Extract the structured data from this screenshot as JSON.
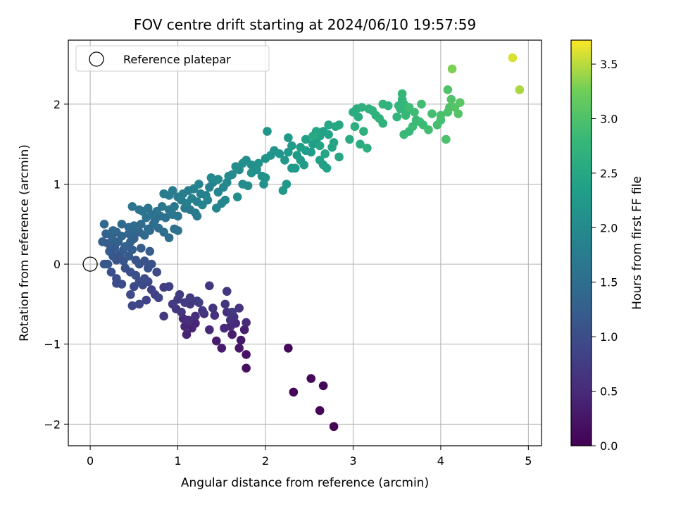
{
  "chart_data": {
    "type": "scatter",
    "title": "FOV centre drift starting at 2024/06/10 19:57:59",
    "xlabel": "Angular distance from reference (arcmin)",
    "ylabel": "Rotation from reference (arcmin)",
    "xlim": [
      -0.25,
      5.15
    ],
    "ylim": [
      -2.27,
      2.8
    ],
    "xticks": [
      0,
      1,
      2,
      3,
      4,
      5
    ],
    "yticks": [
      -2,
      -1,
      0,
      1,
      2
    ],
    "grid": true,
    "legend": {
      "position": "top-left",
      "entries": [
        "Reference platepar"
      ]
    },
    "reference_point": {
      "x": 0,
      "y": 0
    },
    "colorbar": {
      "label": "Hours from first FF file",
      "range": [
        0,
        3.72
      ],
      "ticks": [
        0.0,
        0.5,
        1.0,
        1.5,
        2.0,
        2.5,
        3.0,
        3.5
      ],
      "colormap": "viridis"
    },
    "points": [
      [
        2.78,
        -2.03,
        0.02
      ],
      [
        2.62,
        -1.83,
        0.04
      ],
      [
        2.32,
        -1.6,
        0.06
      ],
      [
        2.66,
        -1.52,
        0.05
      ],
      [
        2.52,
        -1.43,
        0.08
      ],
      [
        2.26,
        -1.05,
        0.1
      ],
      [
        1.78,
        -1.3,
        0.18
      ],
      [
        1.78,
        -1.13,
        0.22
      ],
      [
        1.7,
        -1.05,
        0.25
      ],
      [
        1.5,
        -1.05,
        0.3
      ],
      [
        1.44,
        -0.96,
        0.32
      ],
      [
        1.72,
        -0.95,
        0.28
      ],
      [
        1.62,
        -0.88,
        0.34
      ],
      [
        1.76,
        -0.82,
        0.36
      ],
      [
        1.1,
        -0.88,
        0.4
      ],
      [
        1.16,
        -0.8,
        0.42
      ],
      [
        1.08,
        -0.78,
        0.45
      ],
      [
        1.2,
        -0.74,
        0.44
      ],
      [
        1.36,
        -0.82,
        0.46
      ],
      [
        1.53,
        -0.8,
        0.48
      ],
      [
        1.6,
        -0.78,
        0.5
      ],
      [
        1.66,
        -0.74,
        0.49
      ],
      [
        1.78,
        -0.73,
        0.52
      ],
      [
        1.06,
        -0.68,
        0.54
      ],
      [
        1.12,
        -0.7,
        0.55
      ],
      [
        1.2,
        -0.65,
        0.56
      ],
      [
        1.3,
        -0.62,
        0.58
      ],
      [
        1.42,
        -0.64,
        0.6
      ],
      [
        1.56,
        -0.6,
        0.57
      ],
      [
        1.64,
        -0.66,
        0.59
      ],
      [
        1.7,
        -0.55,
        0.62
      ],
      [
        1.6,
        -0.7,
        0.61
      ],
      [
        0.98,
        -0.56,
        0.64
      ],
      [
        1.04,
        -0.6,
        0.65
      ],
      [
        1.14,
        -0.5,
        0.66
      ],
      [
        1.28,
        -0.58,
        0.67
      ],
      [
        1.4,
        -0.55,
        0.63
      ],
      [
        1.54,
        -0.5,
        0.68
      ],
      [
        1.62,
        -0.6,
        0.69
      ],
      [
        0.84,
        -0.65,
        0.7
      ],
      [
        0.94,
        -0.5,
        0.72
      ],
      [
        1.0,
        -0.44,
        0.71
      ],
      [
        1.08,
        -0.48,
        0.73
      ],
      [
        1.22,
        -0.46,
        0.74
      ],
      [
        1.02,
        -0.38,
        0.75
      ],
      [
        1.14,
        -0.42,
        0.76
      ],
      [
        1.24,
        -0.48,
        0.77
      ],
      [
        1.36,
        -0.27,
        0.66
      ],
      [
        1.56,
        -0.34,
        0.68
      ],
      [
        0.84,
        -0.29,
        0.78
      ],
      [
        0.9,
        -0.28,
        0.8
      ],
      [
        0.74,
        -0.38,
        0.82
      ],
      [
        0.7,
        -0.32,
        0.83
      ],
      [
        0.78,
        -0.42,
        0.84
      ],
      [
        0.64,
        -0.45,
        0.86
      ],
      [
        0.56,
        -0.5,
        0.88
      ],
      [
        0.48,
        -0.52,
        0.9
      ],
      [
        0.6,
        -0.26,
        0.92
      ],
      [
        0.66,
        -0.22,
        0.93
      ],
      [
        0.5,
        -0.28,
        0.95
      ],
      [
        0.46,
        -0.38,
        0.94
      ],
      [
        0.36,
        -0.25,
        0.98
      ],
      [
        0.3,
        -0.24,
        1.0
      ],
      [
        0.24,
        -0.1,
        1.02
      ],
      [
        0.3,
        -0.18,
        1.01
      ],
      [
        0.76,
        -0.1,
        0.96
      ],
      [
        0.56,
        -0.22,
        0.97
      ],
      [
        0.62,
        -0.18,
        0.99
      ],
      [
        0.46,
        -0.1,
        1.04
      ],
      [
        0.52,
        -0.14,
        1.03
      ],
      [
        0.4,
        -0.05,
        1.05
      ],
      [
        0.56,
        0.0,
        1.08
      ],
      [
        0.62,
        0.04,
        1.1
      ],
      [
        0.7,
        0.0,
        1.06
      ],
      [
        0.66,
        -0.05,
        1.07
      ],
      [
        0.52,
        0.05,
        1.09
      ],
      [
        0.38,
        0.04,
        1.12
      ],
      [
        0.3,
        0.05,
        1.11
      ],
      [
        0.2,
        0.0,
        1.14
      ],
      [
        0.16,
        0.0,
        1.15
      ],
      [
        0.26,
        0.1,
        1.13
      ],
      [
        0.34,
        0.12,
        1.16
      ],
      [
        0.44,
        0.1,
        1.18
      ],
      [
        0.22,
        0.16,
        1.2
      ],
      [
        0.28,
        0.2,
        1.19
      ],
      [
        0.38,
        0.18,
        1.22
      ],
      [
        0.48,
        0.18,
        1.24
      ],
      [
        0.58,
        0.2,
        1.21
      ],
      [
        0.68,
        0.16,
        1.23
      ],
      [
        0.14,
        0.28,
        1.26
      ],
      [
        0.2,
        0.26,
        1.25
      ],
      [
        0.26,
        0.3,
        1.27
      ],
      [
        0.32,
        0.28,
        1.28
      ],
      [
        0.4,
        0.22,
        1.29
      ],
      [
        0.46,
        0.28,
        1.3
      ],
      [
        0.5,
        0.32,
        1.32
      ],
      [
        0.18,
        0.38,
        1.31
      ],
      [
        0.24,
        0.36,
        1.33
      ],
      [
        0.3,
        0.4,
        1.34
      ],
      [
        0.36,
        0.35,
        1.35
      ],
      [
        0.44,
        0.38,
        1.36
      ],
      [
        0.5,
        0.42,
        1.38
      ],
      [
        0.56,
        0.4,
        1.37
      ],
      [
        0.62,
        0.36,
        1.39
      ],
      [
        0.68,
        0.42,
        1.4
      ],
      [
        0.16,
        0.5,
        1.42
      ],
      [
        0.26,
        0.42,
        1.41
      ],
      [
        0.36,
        0.5,
        1.44
      ],
      [
        0.44,
        0.46,
        1.43
      ],
      [
        0.5,
        0.48,
        1.46
      ],
      [
        0.58,
        0.5,
        1.45
      ],
      [
        0.66,
        0.44,
        1.47
      ],
      [
        0.72,
        0.5,
        1.48
      ],
      [
        0.78,
        0.45,
        1.5
      ],
      [
        0.84,
        0.4,
        1.52
      ],
      [
        0.9,
        0.33,
        1.49
      ],
      [
        0.96,
        0.44,
        1.53
      ],
      [
        1.0,
        0.42,
        1.55
      ],
      [
        0.74,
        0.55,
        1.51
      ],
      [
        0.8,
        0.6,
        1.54
      ],
      [
        0.86,
        0.58,
        1.56
      ],
      [
        0.64,
        0.58,
        1.57
      ],
      [
        0.7,
        0.62,
        1.58
      ],
      [
        0.6,
        0.66,
        1.6
      ],
      [
        0.66,
        0.7,
        1.59
      ],
      [
        0.48,
        0.72,
        1.62
      ],
      [
        0.56,
        0.68,
        1.61
      ],
      [
        0.94,
        0.62,
        1.63
      ],
      [
        1.0,
        0.6,
        1.65
      ],
      [
        0.76,
        0.66,
        1.64
      ],
      [
        0.82,
        0.72,
        1.66
      ],
      [
        0.9,
        0.68,
        1.67
      ],
      [
        0.96,
        0.72,
        1.68
      ],
      [
        1.08,
        0.7,
        1.7
      ],
      [
        1.14,
        0.68,
        1.69
      ],
      [
        1.2,
        0.64,
        1.71
      ],
      [
        1.22,
        0.6,
        1.72
      ],
      [
        0.84,
        0.88,
        1.74
      ],
      [
        0.9,
        0.86,
        1.73
      ],
      [
        0.94,
        0.92,
        1.76
      ],
      [
        1.0,
        0.84,
        1.75
      ],
      [
        1.06,
        0.88,
        1.78
      ],
      [
        1.12,
        0.92,
        1.77
      ],
      [
        1.04,
        0.8,
        1.79
      ],
      [
        1.1,
        0.76,
        1.8
      ],
      [
        1.16,
        0.82,
        1.82
      ],
      [
        1.22,
        0.78,
        1.81
      ],
      [
        1.26,
        0.88,
        1.84
      ],
      [
        1.32,
        0.86,
        1.83
      ],
      [
        1.18,
        0.94,
        1.85
      ],
      [
        1.24,
        1.0,
        1.86
      ],
      [
        1.36,
        0.96,
        1.87
      ],
      [
        1.4,
        1.02,
        1.88
      ],
      [
        1.28,
        0.74,
        1.89
      ],
      [
        1.34,
        0.8,
        1.9
      ],
      [
        1.44,
        0.7,
        1.91
      ],
      [
        1.5,
        0.76,
        1.92
      ],
      [
        1.54,
        0.8,
        1.93
      ],
      [
        1.46,
        0.9,
        1.94
      ],
      [
        1.52,
        0.96,
        1.95
      ],
      [
        1.56,
        1.02,
        1.96
      ],
      [
        1.38,
        1.08,
        1.97
      ],
      [
        1.46,
        1.06,
        1.98
      ],
      [
        1.58,
        1.1,
        1.99
      ],
      [
        1.62,
        1.12,
        2.0
      ],
      [
        1.7,
        1.18,
        2.01
      ],
      [
        1.68,
        0.84,
        2.02
      ],
      [
        1.74,
        1.0,
        2.03
      ],
      [
        1.8,
        0.98,
        2.04
      ],
      [
        1.66,
        1.22,
        2.05
      ],
      [
        1.74,
        1.26,
        2.06
      ],
      [
        1.78,
        1.3,
        2.07
      ],
      [
        1.84,
        1.24,
        2.08
      ],
      [
        1.9,
        1.18,
        2.09
      ],
      [
        1.96,
        1.1,
        2.1
      ],
      [
        1.98,
        1.0,
        2.11
      ],
      [
        2.0,
        1.08,
        2.12
      ],
      [
        1.84,
        1.14,
        2.13
      ],
      [
        1.92,
        1.26,
        2.14
      ],
      [
        2.0,
        1.32,
        2.15
      ],
      [
        2.06,
        1.36,
        2.16
      ],
      [
        2.1,
        1.42,
        2.17
      ],
      [
        2.16,
        1.38,
        2.18
      ],
      [
        2.02,
        1.66,
        2.2
      ],
      [
        2.22,
        1.3,
        2.19
      ],
      [
        2.2,
        0.92,
        2.22
      ],
      [
        2.24,
        1.0,
        2.21
      ],
      [
        2.3,
        1.2,
        2.24
      ],
      [
        2.26,
        1.4,
        2.23
      ],
      [
        2.3,
        1.48,
        2.26
      ],
      [
        2.26,
        1.58,
        2.25
      ],
      [
        2.36,
        1.36,
        2.28
      ],
      [
        2.4,
        1.3,
        2.27
      ],
      [
        2.34,
        1.2,
        2.3
      ],
      [
        2.44,
        1.24,
        2.29
      ],
      [
        2.46,
        1.42,
        2.32
      ],
      [
        2.52,
        1.4,
        2.31
      ],
      [
        2.54,
        1.5,
        2.34
      ],
      [
        2.58,
        1.56,
        2.33
      ],
      [
        2.46,
        1.56,
        2.36
      ],
      [
        2.4,
        1.46,
        2.35
      ],
      [
        2.62,
        1.3,
        2.38
      ],
      [
        2.66,
        1.24,
        2.37
      ],
      [
        2.62,
        1.6,
        2.4
      ],
      [
        2.66,
        1.66,
        2.39
      ],
      [
        2.72,
        1.62,
        2.42
      ],
      [
        2.7,
        1.2,
        2.41
      ],
      [
        2.76,
        1.46,
        2.44
      ],
      [
        2.78,
        1.52,
        2.43
      ],
      [
        2.62,
        1.48,
        2.46
      ],
      [
        2.68,
        1.38,
        2.45
      ],
      [
        2.58,
        1.66,
        2.48
      ],
      [
        2.84,
        1.34,
        2.47
      ],
      [
        2.72,
        1.74,
        2.5
      ],
      [
        2.8,
        1.72,
        2.49
      ],
      [
        2.84,
        1.74,
        2.52
      ],
      [
        2.54,
        1.6,
        2.51
      ],
      [
        2.96,
        1.56,
        2.55
      ],
      [
        3.0,
        1.9,
        2.58
      ],
      [
        3.04,
        1.94,
        2.6
      ],
      [
        3.06,
        1.84,
        2.57
      ],
      [
        3.02,
        1.72,
        2.62
      ],
      [
        3.08,
        1.5,
        2.61
      ],
      [
        3.12,
        1.66,
        2.64
      ],
      [
        3.16,
        1.45,
        2.63
      ],
      [
        3.1,
        1.96,
        2.66
      ],
      [
        3.18,
        1.94,
        2.65
      ],
      [
        3.22,
        1.92,
        2.68
      ],
      [
        3.26,
        1.86,
        2.67
      ],
      [
        3.3,
        1.82,
        2.7
      ],
      [
        3.34,
        1.76,
        2.69
      ],
      [
        3.34,
        2.0,
        2.72
      ],
      [
        3.4,
        1.98,
        2.71
      ],
      [
        3.5,
        1.84,
        2.74
      ],
      [
        3.52,
        1.98,
        2.73
      ],
      [
        3.54,
        1.94,
        2.76
      ],
      [
        3.56,
        2.06,
        2.75
      ],
      [
        3.56,
        2.13,
        2.78
      ],
      [
        3.58,
        2.0,
        2.77
      ],
      [
        3.6,
        1.86,
        2.8
      ],
      [
        3.62,
        1.92,
        2.79
      ],
      [
        3.58,
        1.62,
        2.82
      ],
      [
        3.64,
        1.66,
        2.81
      ],
      [
        3.68,
        1.72,
        2.84
      ],
      [
        3.72,
        1.8,
        2.83
      ],
      [
        3.76,
        1.78,
        2.86
      ],
      [
        3.8,
        1.74,
        2.85
      ],
      [
        3.64,
        1.96,
        2.88
      ],
      [
        3.7,
        1.9,
        2.87
      ],
      [
        3.86,
        1.68,
        2.9
      ],
      [
        3.78,
        2.0,
        2.89
      ],
      [
        3.9,
        1.88,
        2.92
      ],
      [
        3.96,
        1.74,
        2.94
      ],
      [
        4.0,
        1.8,
        2.93
      ],
      [
        4.0,
        1.86,
        2.96
      ],
      [
        4.06,
        1.56,
        2.98
      ],
      [
        4.08,
        1.9,
        2.97
      ],
      [
        4.1,
        1.96,
        3.0
      ],
      [
        4.12,
        2.06,
        3.02
      ],
      [
        4.08,
        2.18,
        3.01
      ],
      [
        4.16,
        1.96,
        3.05
      ],
      [
        4.2,
        1.88,
        3.04
      ],
      [
        4.22,
        2.02,
        3.08
      ],
      [
        4.13,
        2.44,
        3.3
      ],
      [
        4.82,
        2.58,
        3.6
      ],
      [
        4.9,
        2.18,
        3.45
      ]
    ]
  }
}
